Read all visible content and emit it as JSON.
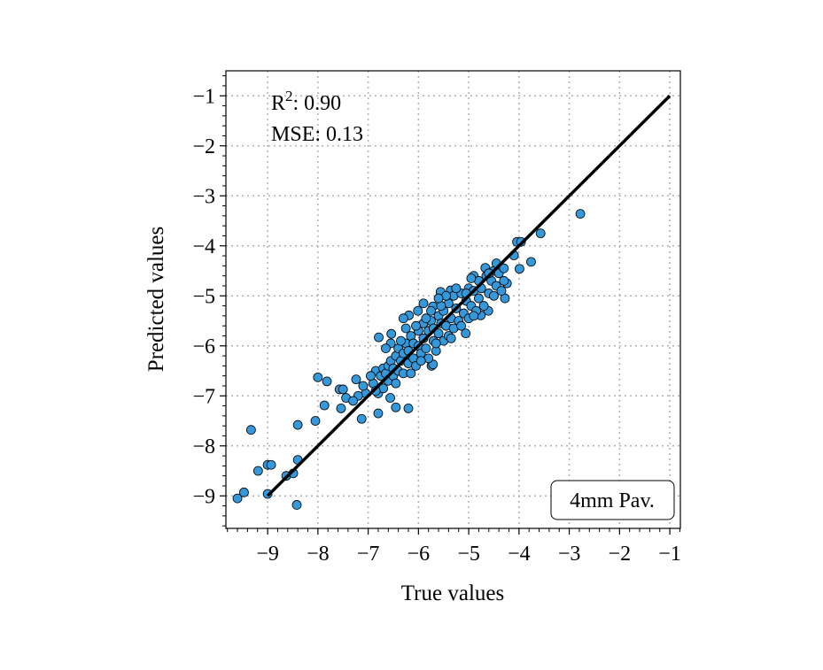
{
  "chart_data": {
    "type": "scatter",
    "title": "",
    "xlabel": "True values",
    "ylabel": "Predicted values",
    "xlim": [
      -9.83,
      -0.79
    ],
    "ylim": [
      -9.65,
      -0.5
    ],
    "xticks": [
      -9,
      -8,
      -7,
      -6,
      -5,
      -4,
      -3,
      -2,
      -1
    ],
    "yticks": [
      -9,
      -8,
      -7,
      -6,
      -5,
      -4,
      -3,
      -2,
      -1
    ],
    "xtick_labels": [
      "−9",
      "−8",
      "−7",
      "−6",
      "−5",
      "−4",
      "−3",
      "−2",
      "−1"
    ],
    "ytick_labels": [
      "−9",
      "−8",
      "−7",
      "−6",
      "−5",
      "−4",
      "−3",
      "−2",
      "−1"
    ],
    "grid": true,
    "annotations": {
      "r2_prefix": "R",
      "r2_sup": "2",
      "r2_value": ": 0.90",
      "mse": "MSE: 0.13"
    },
    "legend_box": {
      "text": "4mm Pav.",
      "placement": "bottom-right"
    },
    "reference_line": {
      "x": [
        -9,
        -1
      ],
      "y": [
        -9,
        -1
      ],
      "color": "#000000"
    },
    "colors": {
      "point_fill": "#3498db",
      "point_edge": "#000000",
      "grid": "#b0b0b0"
    },
    "points": [
      [
        -9.6,
        -9.05
      ],
      [
        -9.47,
        -8.93
      ],
      [
        -9.33,
        -7.68
      ],
      [
        -9.19,
        -8.5
      ],
      [
        -9.0,
        -8.38
      ],
      [
        -8.93,
        -8.38
      ],
      [
        -9.0,
        -8.96
      ],
      [
        -8.63,
        -8.6
      ],
      [
        -8.49,
        -8.55
      ],
      [
        -8.4,
        -8.28
      ],
      [
        -8.42,
        -9.18
      ],
      [
        -8.4,
        -7.58
      ],
      [
        -8.05,
        -7.5
      ],
      [
        -8.0,
        -6.63
      ],
      [
        -7.82,
        -6.71
      ],
      [
        -7.87,
        -7.19
      ],
      [
        -7.57,
        -6.87
      ],
      [
        -7.5,
        -6.87
      ],
      [
        -7.44,
        -7.04
      ],
      [
        -7.54,
        -7.25
      ],
      [
        -7.13,
        -7.46
      ],
      [
        -6.8,
        -7.35
      ],
      [
        -6.45,
        -7.23
      ],
      [
        -6.2,
        -7.25
      ],
      [
        -6.56,
        -7.04
      ],
      [
        -7.24,
        -6.67
      ],
      [
        -5.74,
        -6.4
      ],
      [
        -2.78,
        -3.36
      ],
      [
        -3.57,
        -3.75
      ],
      [
        -4.04,
        -3.92
      ],
      [
        -3.96,
        -3.92
      ],
      [
        -3.76,
        -4.32
      ],
      [
        -3.99,
        -4.46
      ],
      [
        -4.1,
        -4.19
      ],
      [
        -4.24,
        -4.75
      ],
      [
        -4.28,
        -5.05
      ],
      [
        -4.67,
        -4.44
      ],
      [
        -4.9,
        -4.6
      ],
      [
        -5.56,
        -4.92
      ],
      [
        -4.61,
        -5.3
      ],
      [
        -4.76,
        -5.39
      ],
      [
        -5.06,
        -5.75
      ],
      [
        -5.71,
        -6.37
      ],
      [
        -6.79,
        -5.83
      ],
      [
        -6.54,
        -5.76
      ],
      [
        -6.19,
        -5.39
      ],
      [
        -6.01,
        -5.3
      ],
      [
        -5.71,
        -5.21
      ],
      [
        -5.36,
        -4.89
      ],
      [
        -6.9,
        -6.75
      ],
      [
        -6.85,
        -6.5
      ],
      [
        -6.8,
        -6.95
      ],
      [
        -6.75,
        -6.6
      ],
      [
        -6.7,
        -6.45
      ],
      [
        -6.7,
        -6.85
      ],
      [
        -6.65,
        -6.55
      ],
      [
        -6.6,
        -6.4
      ],
      [
        -6.6,
        -6.7
      ],
      [
        -6.55,
        -6.3
      ],
      [
        -6.5,
        -6.6
      ],
      [
        -6.5,
        -6.45
      ],
      [
        -6.45,
        -6.2
      ],
      [
        -6.45,
        -6.75
      ],
      [
        -6.4,
        -6.5
      ],
      [
        -6.4,
        -6.05
      ],
      [
        -6.35,
        -6.3
      ],
      [
        -6.3,
        -6.55
      ],
      [
        -6.3,
        -6.15
      ],
      [
        -6.25,
        -5.95
      ],
      [
        -6.2,
        -6.35
      ],
      [
        -6.2,
        -6.1
      ],
      [
        -6.15,
        -5.8
      ],
      [
        -6.1,
        -6.25
      ],
      [
        -6.1,
        -5.95
      ],
      [
        -6.05,
        -6.4
      ],
      [
        -6.0,
        -6.0
      ],
      [
        -6.0,
        -5.7
      ],
      [
        -5.95,
        -6.15
      ],
      [
        -5.9,
        -5.85
      ],
      [
        -5.9,
        -5.55
      ],
      [
        -5.85,
        -6.05
      ],
      [
        -5.8,
        -5.7
      ],
      [
        -5.8,
        -6.25
      ],
      [
        -5.75,
        -5.5
      ],
      [
        -5.7,
        -5.9
      ],
      [
        -5.7,
        -5.65
      ],
      [
        -5.65,
        -6.1
      ],
      [
        -5.6,
        -5.4
      ],
      [
        -5.6,
        -5.75
      ],
      [
        -5.55,
        -5.55
      ],
      [
        -5.5,
        -5.9
      ],
      [
        -5.5,
        -5.3
      ],
      [
        -5.45,
        -5.6
      ],
      [
        -5.4,
        -5.15
      ],
      [
        -5.4,
        -5.8
      ],
      [
        -5.35,
        -5.45
      ],
      [
        -5.3,
        -5.0
      ],
      [
        -5.3,
        -5.65
      ],
      [
        -5.25,
        -5.25
      ],
      [
        -5.2,
        -5.5
      ],
      [
        -5.15,
        -4.95
      ],
      [
        -5.1,
        -5.35
      ],
      [
        -5.05,
        -5.1
      ],
      [
        -5.0,
        -4.85
      ],
      [
        -5.0,
        -5.45
      ],
      [
        -4.95,
        -5.2
      ],
      [
        -4.9,
        -4.9
      ],
      [
        -4.85,
        -5.3
      ],
      [
        -4.8,
        -4.7
      ],
      [
        -4.8,
        -5.05
      ],
      [
        -4.75,
        -4.85
      ],
      [
        -4.7,
        -5.2
      ],
      [
        -4.65,
        -4.6
      ],
      [
        -4.6,
        -4.95
      ],
      [
        -4.55,
        -4.7
      ],
      [
        -4.5,
        -4.5
      ],
      [
        -4.5,
        -5.0
      ],
      [
        -4.45,
        -4.8
      ],
      [
        -4.4,
        -4.55
      ],
      [
        -4.35,
        -4.9
      ],
      [
        -4.3,
        -4.45
      ],
      [
        -4.3,
        -4.7
      ],
      [
        -4.45,
        -4.35
      ],
      [
        -4.6,
        -4.55
      ],
      [
        -4.95,
        -4.65
      ],
      [
        -5.45,
        -5.0
      ],
      [
        -5.55,
        -5.2
      ],
      [
        -5.75,
        -5.3
      ],
      [
        -5.85,
        -5.45
      ],
      [
        -6.05,
        -5.6
      ],
      [
        -6.25,
        -5.65
      ],
      [
        -6.35,
        -5.9
      ],
      [
        -6.55,
        -5.95
      ],
      [
        -6.65,
        -6.05
      ],
      [
        -6.85,
        -6.9
      ],
      [
        -7.05,
        -6.95
      ],
      [
        -7.1,
        -6.8
      ],
      [
        -7.2,
        -7.0
      ],
      [
        -7.3,
        -7.1
      ],
      [
        -6.95,
        -6.6
      ],
      [
        -6.15,
        -6.55
      ],
      [
        -5.95,
        -6.3
      ],
      [
        -5.65,
        -5.95
      ],
      [
        -5.35,
        -5.85
      ],
      [
        -5.15,
        -5.6
      ],
      [
        -4.9,
        -5.4
      ],
      [
        -6.3,
        -5.45
      ],
      [
        -5.9,
        -5.15
      ],
      [
        -5.6,
        -5.05
      ],
      [
        -5.25,
        -4.85
      ],
      [
        -5.05,
        -4.95
      ]
    ]
  }
}
